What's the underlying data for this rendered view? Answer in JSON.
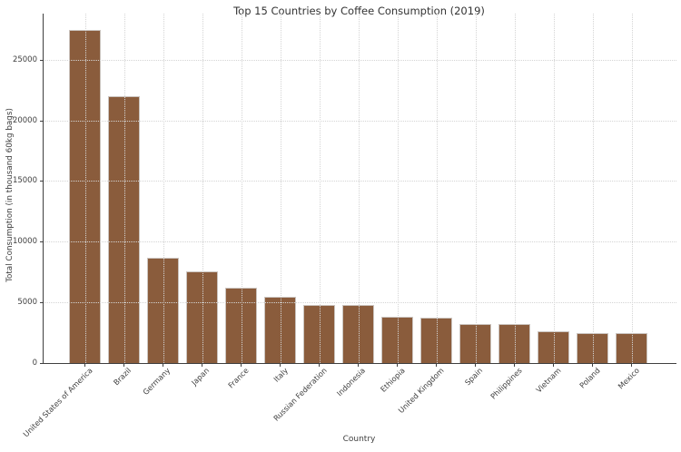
{
  "chart_data": {
    "type": "bar",
    "title": "Top 15 Countries by Coffee Consumption (2019)",
    "xlabel": "Country",
    "ylabel": "Total Consumption (in thousand 60kg bags)",
    "categories": [
      "United States of America",
      "Brazil",
      "Germany",
      "Japan",
      "France",
      "Italy",
      "Russian Federation",
      "Indonesia",
      "Ethiopia",
      "United Kingdom",
      "Spain",
      "Philippines",
      "Vietnam",
      "Poland",
      "Mexico"
    ],
    "values": [
      27430,
      22000,
      8670,
      7551,
      6192,
      5469,
      4820,
      4800,
      3781,
      3770,
      3253,
      3220,
      2600,
      2501,
      2436
    ],
    "yticks": [
      0,
      5000,
      10000,
      15000,
      20000,
      25000
    ],
    "ylim": [
      0,
      28800
    ],
    "grid": true,
    "grid_style": "dotted",
    "legend": "none",
    "bar_color": "#8a5c3c",
    "bar_edge_color": "#cbc4bf",
    "grid_color": "#d4d4d4",
    "axis_color": "#3f3f3f",
    "text_color": "#3f3f3f",
    "background": "#ffffff"
  }
}
